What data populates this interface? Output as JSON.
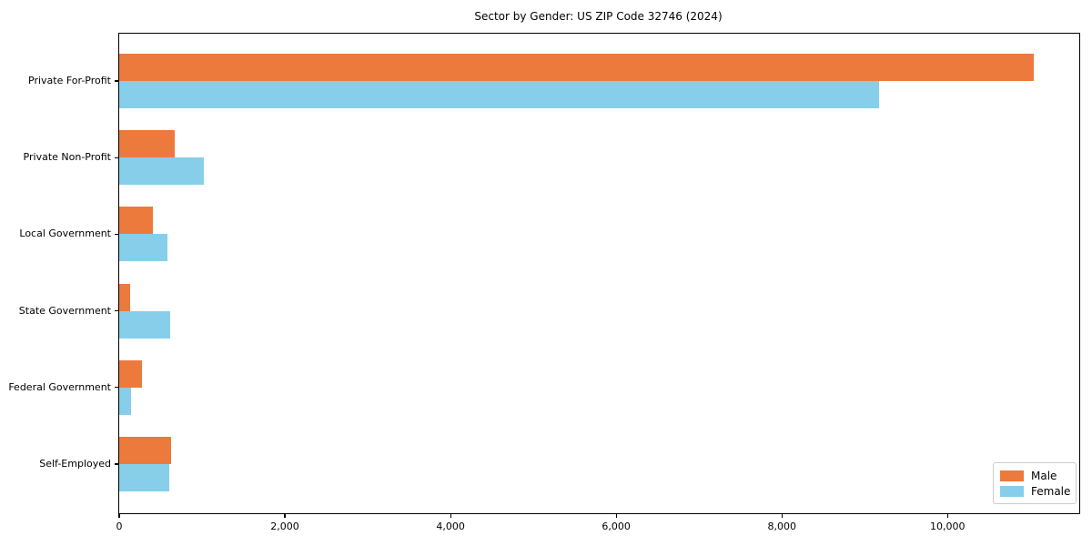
{
  "chart_data": {
    "type": "bar",
    "orientation": "horizontal",
    "title": "Sector by Gender: US ZIP Code 32746 (2024)",
    "categories": [
      "Private For-Profit",
      "Private Non-Profit",
      "Local Government",
      "State Government",
      "Federal Government",
      "Self-Employed"
    ],
    "series": [
      {
        "name": "Male",
        "color": "#ec7a3c",
        "values": [
          11040,
          670,
          410,
          130,
          275,
          625
        ]
      },
      {
        "name": "Female",
        "color": "#87ceeb",
        "values": [
          9170,
          1020,
          580,
          620,
          140,
          600
        ]
      }
    ],
    "xlabel": "",
    "ylabel": "",
    "xlim": [
      0,
      11590
    ],
    "x_ticks": [
      0,
      2000,
      4000,
      6000,
      8000,
      10000
    ],
    "x_tick_labels": [
      "0",
      "2,000",
      "4,000",
      "6,000",
      "8,000",
      "10,000"
    ],
    "grid": false,
    "legend_position": "lower right"
  }
}
